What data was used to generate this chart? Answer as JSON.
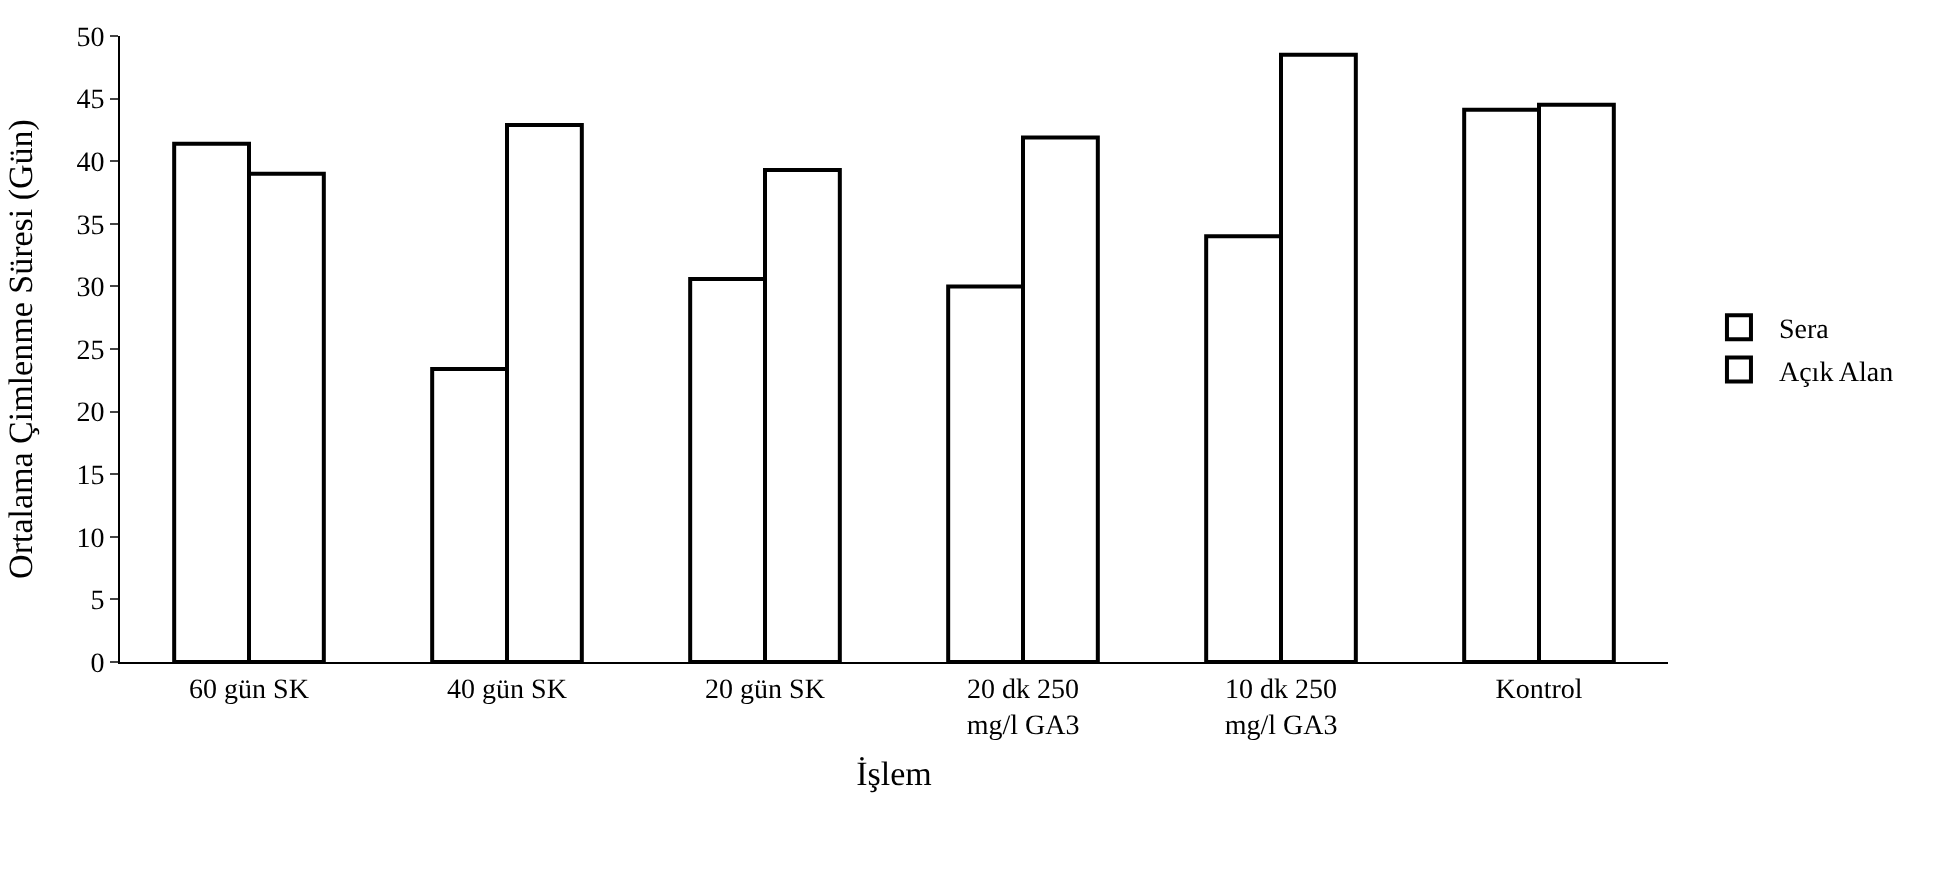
{
  "chart_data": {
    "type": "bar",
    "xlabel": "İşlem",
    "ylabel": "Ortalama Çimlenme Süresi (Gün)",
    "categories": [
      "60 gün SK",
      "40 gün SK",
      "20 gün SK",
      "20 dk 250\nmg/l GA3",
      "10 dk 250\nmg/l GA3",
      "Kontrol"
    ],
    "series": [
      {
        "name": "Sera",
        "color": "#ffffff",
        "values": [
          41.4,
          23.4,
          30.6,
          30.0,
          34.0,
          44.1
        ]
      },
      {
        "name": "Açık Alan",
        "color": "#ffffff",
        "values": [
          39.0,
          42.9,
          39.3,
          41.9,
          48.5,
          44.5
        ]
      }
    ],
    "ylim": [
      0,
      50
    ],
    "yticks": [
      0,
      5,
      10,
      15,
      20,
      25,
      30,
      35,
      40,
      45,
      50
    ],
    "grid": false,
    "legend": "right"
  }
}
